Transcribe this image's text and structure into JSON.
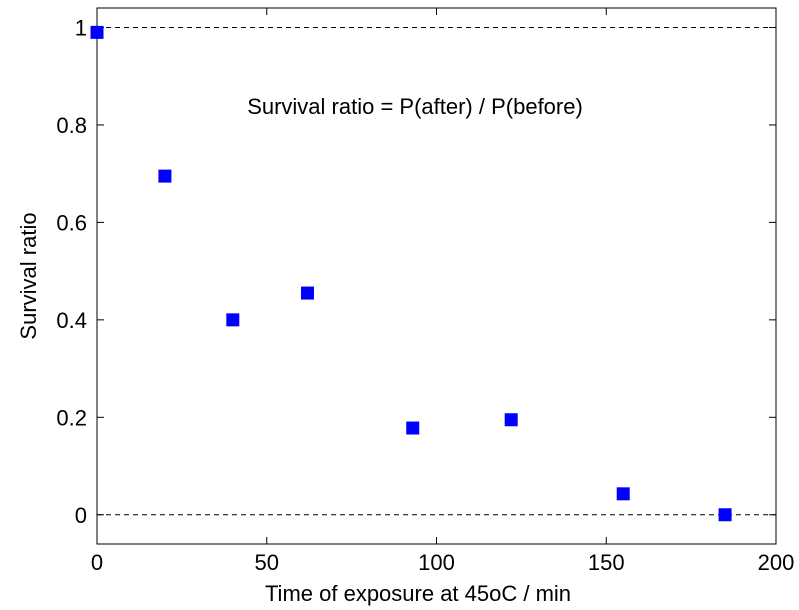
{
  "chart_data": {
    "type": "scatter",
    "xlabel": "Time of exposure at 45oC / min",
    "ylabel": "Survival ratio",
    "annotation": "Survival ratio = P(after) / P(before)",
    "xlim": [
      0,
      200
    ],
    "ylim": [
      -0.06,
      1.04
    ],
    "x_ticks": [
      0,
      50,
      100,
      150,
      200
    ],
    "y_ticks": [
      0,
      0.2,
      0.4,
      0.6,
      0.8,
      1
    ],
    "x_tick_labels": [
      "0",
      "50",
      "100",
      "150",
      "200"
    ],
    "y_tick_labels": [
      "0",
      "0.2",
      "0.4",
      "0.6",
      "0.8",
      "1"
    ],
    "reference_lines_y": [
      0,
      1
    ],
    "grid": false,
    "marker_color": "#0000ff",
    "series": [
      {
        "x": [
          0,
          20,
          40,
          62,
          93,
          122,
          155,
          185
        ],
        "y": [
          0.99,
          0.695,
          0.4,
          0.455,
          0.178,
          0.195,
          0.043,
          0.0
        ]
      }
    ]
  }
}
